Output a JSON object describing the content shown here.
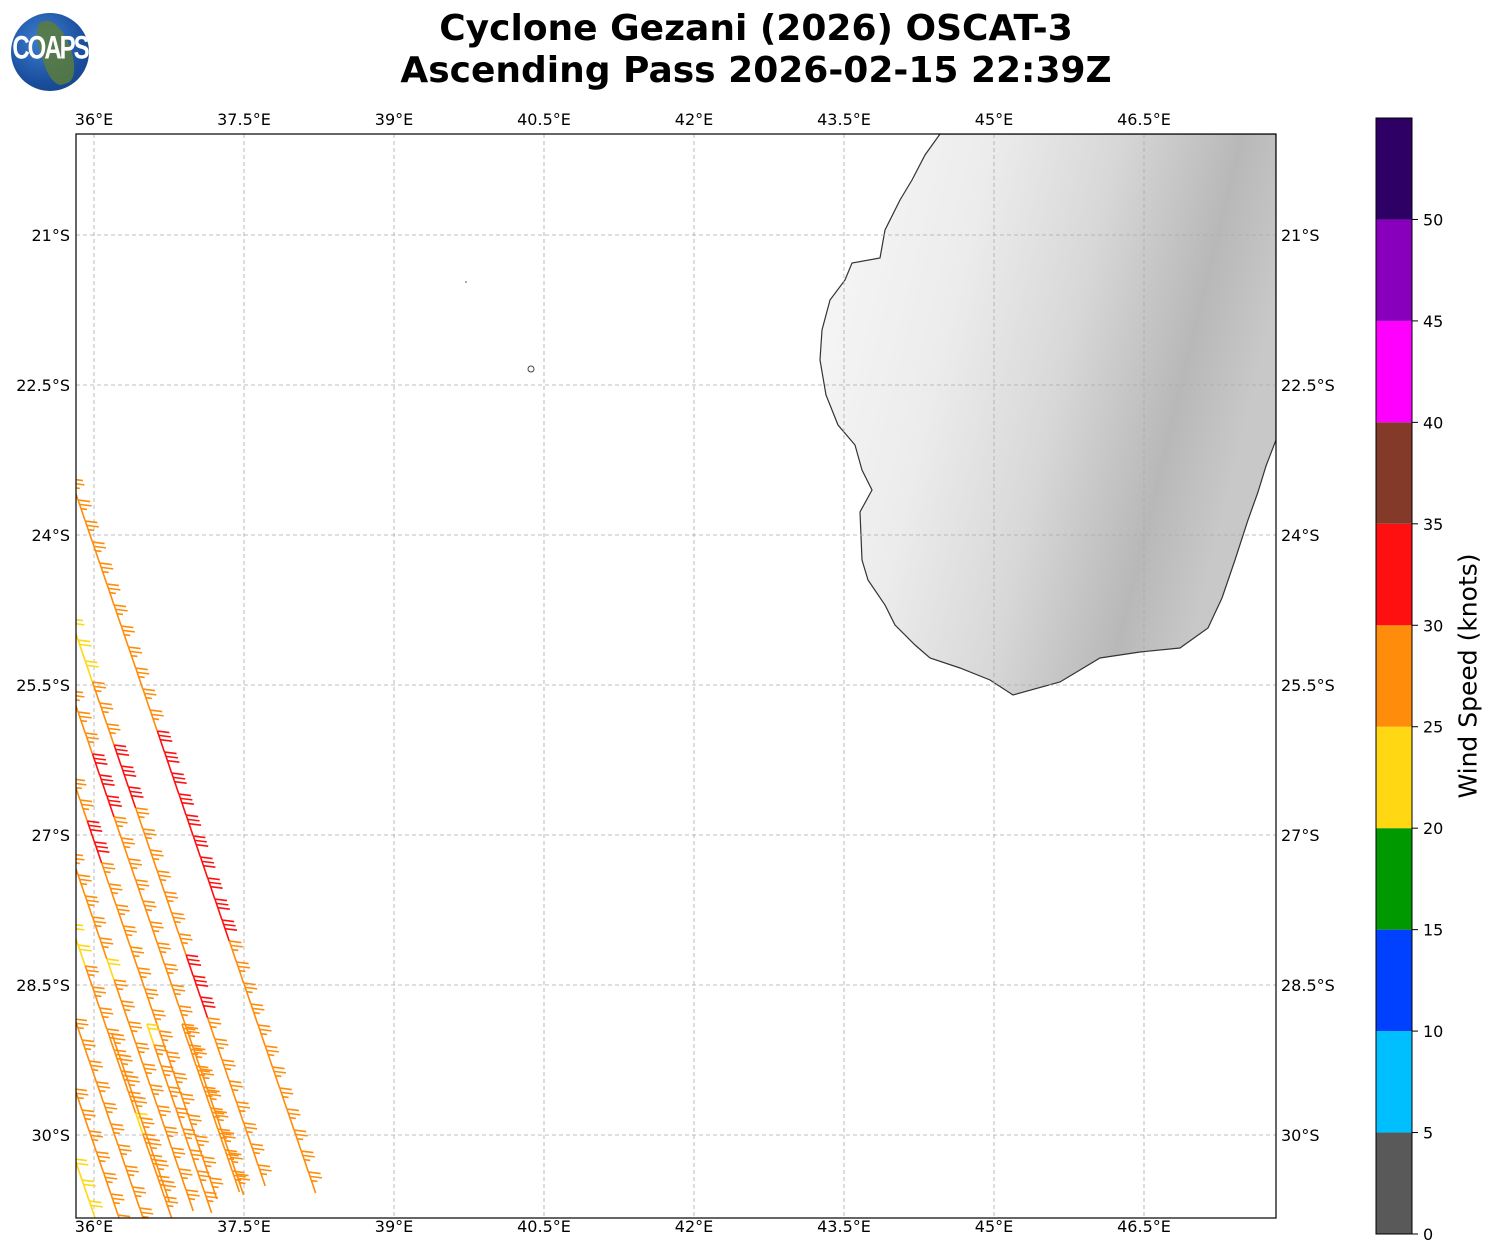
{
  "title_line1": "Cyclone Gezani (2026) OSCAT-3",
  "title_line2": "Ascending Pass 2026-02-15 22:39Z",
  "logo_text": "COAPS",
  "chart_data": {
    "type": "map-wind-barbs",
    "title": "Cyclone Gezani (2026) OSCAT-3 Ascending Pass 2026-02-15 22:39Z",
    "lon_range": [
      35.82,
      47.82
    ],
    "lat_range": [
      -30.83,
      -19.99
    ],
    "lon_ticks": [
      36,
      37.5,
      39,
      40.5,
      42,
      43.5,
      45,
      46.5
    ],
    "lon_tick_labels": [
      "36°E",
      "37.5°E",
      "39°E",
      "40.5°E",
      "42°E",
      "43.5°E",
      "45°E",
      "46.5°E"
    ],
    "lat_ticks": [
      -21,
      -22.5,
      -24,
      -25.5,
      -27,
      -28.5,
      -30
    ],
    "lat_tick_labels": [
      "21°S",
      "22.5°S",
      "24°S",
      "25.5°S",
      "27°S",
      "28.5°S",
      "30°S"
    ],
    "grid": true,
    "colorbar": {
      "label": "Wind Speed (knots)",
      "bounds": [
        0,
        5,
        10,
        15,
        20,
        25,
        30,
        35,
        40,
        45,
        50,
        55
      ],
      "tick_labels": [
        "0",
        "5",
        "10",
        "15",
        "20",
        "25",
        "30",
        "35",
        "40",
        "45",
        "50"
      ],
      "colors": [
        "#595959",
        "#00bfff",
        "#0040ff",
        "#009900",
        "#ffd712",
        "#ff8c0a",
        "#ff1010",
        "#833a28",
        "#ff00ff",
        "#8800bb",
        "#2e0066"
      ]
    },
    "barb_step": {
      "dlon": 0.072,
      "dlat": -0.21
    },
    "tracks": [
      {
        "start": [
          35.84,
          -23.65
        ],
        "speeds": [
          27,
          27,
          27,
          27,
          27,
          27,
          27,
          27,
          27,
          27,
          27,
          27,
          32,
          32,
          32,
          32,
          32,
          32,
          32,
          32,
          32,
          32,
          27,
          27,
          27,
          27,
          27,
          27,
          27,
          27,
          27,
          27,
          27,
          27
        ]
      },
      {
        "start": [
          35.84,
          -25.05
        ],
        "speeds": [
          22,
          22,
          22,
          27,
          27,
          27,
          32,
          32,
          32,
          27,
          27,
          27,
          27,
          27,
          27,
          27,
          32,
          32,
          32,
          27,
          27,
          27,
          27,
          27,
          27,
          27,
          27
        ]
      },
      {
        "start": [
          35.84,
          -25.77
        ],
        "speeds": [
          27,
          27,
          27,
          32,
          32,
          32,
          27,
          27,
          27,
          27,
          27,
          27,
          27,
          27,
          27,
          27,
          27,
          27,
          27,
          27,
          27,
          27,
          27,
          27
        ]
      },
      {
        "start": [
          35.86,
          -26.65
        ],
        "speeds": [
          27,
          27,
          32,
          32,
          27,
          27,
          27,
          27,
          27,
          27,
          27,
          27,
          27,
          27,
          27,
          27,
          27,
          27,
          27,
          27
        ]
      },
      {
        "start": [
          35.84,
          -27.4
        ],
        "speeds": [
          27,
          27,
          27,
          27,
          27,
          22,
          27,
          27,
          27,
          27,
          27,
          27,
          27,
          27,
          27,
          27,
          27
        ]
      },
      {
        "start": [
          35.84,
          -28.1
        ],
        "speeds": [
          22,
          22,
          27,
          27,
          27,
          27,
          27,
          27,
          27,
          22,
          27,
          27,
          27,
          27
        ]
      },
      {
        "start": [
          35.88,
          -29.05
        ],
        "speeds": [
          27,
          27,
          27,
          27,
          27,
          27,
          27,
          27,
          27,
          27
        ]
      },
      {
        "start": [
          35.88,
          -29.75
        ],
        "speeds": [
          27,
          27,
          27,
          27,
          27,
          27,
          27
        ]
      },
      {
        "start": [
          35.88,
          -30.45
        ],
        "speeds": [
          22,
          22,
          22
        ]
      },
      {
        "start": [
          36.25,
          -29.2
        ],
        "speeds": [
          27,
          27,
          27,
          27,
          27,
          27,
          27,
          27
        ]
      },
      {
        "start": [
          36.6,
          -29.1
        ],
        "speeds": [
          22,
          27,
          27,
          27,
          27,
          27,
          27,
          27,
          27
        ]
      },
      {
        "start": [
          36.95,
          -29.1
        ],
        "speeds": [
          27,
          27,
          27,
          27,
          27,
          27,
          27,
          27
        ]
      }
    ]
  }
}
